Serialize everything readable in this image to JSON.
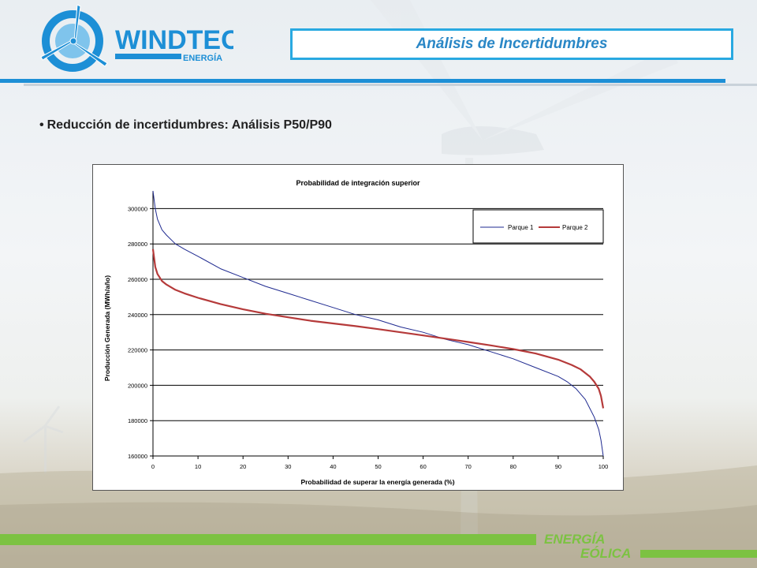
{
  "header": {
    "logo_text": "WINDTEC",
    "logo_subtext": "ENERGÍA",
    "title": "Análisis de Incertidumbres"
  },
  "bullet": {
    "text": "Reducción de incertidumbres: Análisis P50/P90"
  },
  "footer": {
    "line1": "ENERGÍA",
    "line2": "EÓLICA"
  },
  "colors": {
    "accent_blue": "#1d8fd6",
    "title_blue": "#2a87c6",
    "footer_green": "#7cc242",
    "series1": "#1f2a90",
    "series2": "#b53a3a"
  },
  "icons": {
    "logo": "wind-turbine-icon",
    "background": "wind-turbine-landscape"
  },
  "chart_data": {
    "type": "line",
    "title": "Probabilidad de integración superior",
    "xlabel": "Probabilidad de superar la energía generada (%)",
    "ylabel": "Producción Generada (MWh/año)",
    "xlim": [
      0,
      100
    ],
    "ylim": [
      160000,
      310000
    ],
    "x_ticks": [
      0,
      10,
      20,
      30,
      40,
      50,
      60,
      70,
      80,
      90,
      100
    ],
    "y_ticks": [
      160000,
      180000,
      200000,
      220000,
      240000,
      260000,
      280000,
      300000
    ],
    "grid": "horizontal",
    "legend_position": "top-right",
    "series": [
      {
        "name": "Parque 1",
        "color": "#1f2a90",
        "x": [
          0,
          0.5,
          1,
          2,
          3,
          5,
          7,
          10,
          15,
          20,
          25,
          30,
          35,
          40,
          45,
          50,
          55,
          60,
          65,
          70,
          75,
          80,
          85,
          90,
          92,
          94,
          96,
          97,
          98,
          99,
          99.5,
          100
        ],
        "y": [
          310000,
          300000,
          294000,
          288000,
          285000,
          280000,
          277000,
          273000,
          266000,
          261000,
          256000,
          252000,
          248000,
          244000,
          240000,
          237000,
          233000,
          230000,
          226000,
          223000,
          219000,
          215000,
          210000,
          205000,
          202000,
          198000,
          192000,
          187000,
          182000,
          175000,
          169000,
          160000
        ]
      },
      {
        "name": "Parque 2",
        "color": "#b53a3a",
        "x": [
          0,
          0.5,
          1,
          2,
          3,
          5,
          7,
          10,
          15,
          20,
          25,
          30,
          35,
          40,
          45,
          50,
          55,
          60,
          65,
          70,
          75,
          80,
          85,
          90,
          93,
          95,
          97,
          98,
          99,
          99.5,
          100
        ],
        "y": [
          277000,
          267000,
          263000,
          259000,
          257000,
          254000,
          252000,
          249500,
          246000,
          243000,
          240500,
          238500,
          236500,
          235000,
          233500,
          231800,
          230000,
          228200,
          226400,
          224500,
          222600,
          220500,
          218000,
          214500,
          211500,
          209000,
          205000,
          202000,
          198000,
          194000,
          187000
        ]
      }
    ]
  }
}
